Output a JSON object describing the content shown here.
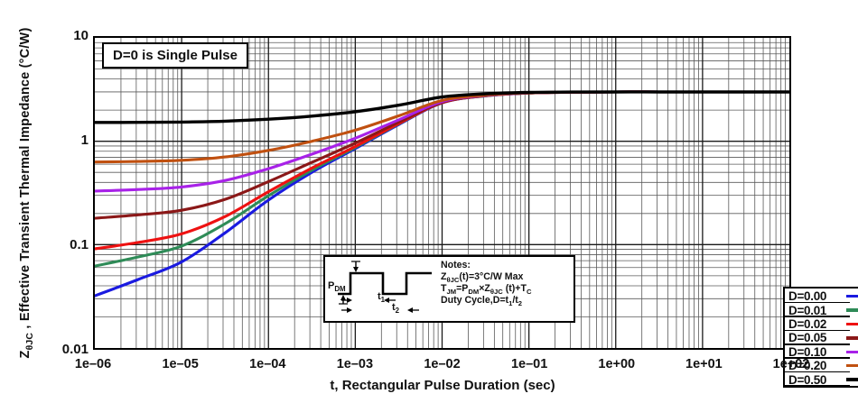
{
  "chart_data": {
    "type": "line",
    "x_scale": "log",
    "y_scale": "log",
    "xlim": [
      1e-06,
      100
    ],
    "ylim": [
      0.01,
      10
    ],
    "grid": true,
    "xlabel": "t, Rectangular Pulse Duration (sec)",
    "ylabel_segments": [
      {
        "t": "Z"
      },
      {
        "sub": "θJC"
      },
      {
        "t": " , Effective Transient Thermal Impedance (°C/W)"
      }
    ],
    "annotation": "D=0 is Single Pulse",
    "x_tick_values": [
      1e-06,
      1e-05,
      0.0001,
      0.001,
      0.01,
      0.1,
      1,
      10,
      100
    ],
    "x_tick_labels": [
      "1e–06",
      "1e–05",
      "1e–04",
      "1e–03",
      "1e–02",
      "1e–01",
      "1e+00",
      "1e+01",
      "1e+02"
    ],
    "y_tick_values": [
      10,
      1,
      0.1,
      0.01
    ],
    "y_tick_labels": [
      "10",
      "1",
      "0.1",
      "0.01"
    ],
    "legend_position": "bottom-right",
    "x": [
      1e-06,
      3.16e-06,
      1e-05,
      3.16e-05,
      0.0001,
      0.000316,
      0.001,
      0.00316,
      0.01,
      0.0316,
      0.1,
      0.316,
      1,
      3.16,
      10,
      31.6,
      100
    ],
    "series": [
      {
        "name": "D=0.00",
        "duty_cycle": 0.0,
        "color": "#1a1ae0",
        "values": [
          0.032,
          0.046,
          0.068,
          0.13,
          0.27,
          0.5,
          0.85,
          1.45,
          2.35,
          2.75,
          2.93,
          2.98,
          3.0,
          3.0,
          3.0,
          3.0,
          3.0
        ]
      },
      {
        "name": "D=0.01",
        "duty_cycle": 0.01,
        "color": "#2e8b57",
        "values": [
          0.062,
          0.076,
          0.097,
          0.159,
          0.297,
          0.525,
          0.87,
          1.47,
          2.36,
          2.75,
          2.93,
          2.98,
          3.0,
          3.0,
          3.0,
          3.0,
          3.0
        ]
      },
      {
        "name": "D=0.02",
        "duty_cycle": 0.02,
        "color": "#ee1111",
        "values": [
          0.091,
          0.105,
          0.127,
          0.187,
          0.325,
          0.55,
          0.89,
          1.48,
          2.36,
          2.76,
          2.93,
          2.98,
          3.0,
          3.0,
          3.0,
          3.0,
          3.0
        ]
      },
      {
        "name": "D=0.05",
        "duty_cycle": 0.05,
        "color": "#8b1818",
        "values": [
          0.18,
          0.194,
          0.215,
          0.274,
          0.407,
          0.625,
          0.96,
          1.53,
          2.38,
          2.76,
          2.93,
          2.98,
          3.0,
          3.0,
          3.0,
          3.0,
          3.0
        ]
      },
      {
        "name": "D=0.10",
        "duty_cycle": 0.1,
        "color": "#a822e8",
        "values": [
          0.33,
          0.341,
          0.361,
          0.417,
          0.543,
          0.75,
          1.07,
          1.61,
          2.42,
          2.78,
          2.94,
          2.99,
          3.0,
          3.0,
          3.0,
          3.0,
          3.0
        ]
      },
      {
        "name": "D=0.20",
        "duty_cycle": 0.2,
        "color": "#c05010",
        "values": [
          0.63,
          0.637,
          0.654,
          0.704,
          0.816,
          1.0,
          1.28,
          1.76,
          2.48,
          2.8,
          2.94,
          2.99,
          3.0,
          3.0,
          3.0,
          3.0,
          3.0
        ]
      },
      {
        "name": "D=0.50",
        "duty_cycle": 0.5,
        "color": "#000000",
        "values": [
          1.52,
          1.523,
          1.534,
          1.565,
          1.635,
          1.75,
          1.93,
          2.23,
          2.68,
          2.88,
          2.97,
          2.99,
          3.0,
          3.0,
          3.0,
          3.0,
          3.0
        ]
      }
    ],
    "max_value_note": "3°C/W"
  },
  "inset": {
    "notes_title": "Notes:",
    "notes_lines": [
      [
        {
          "t": "Z"
        },
        {
          "sub": "θJC"
        },
        {
          "t": "(t)=3°C/W Max"
        }
      ],
      [
        {
          "t": "T"
        },
        {
          "sub": "JM"
        },
        {
          "t": "=P"
        },
        {
          "sub": "DM"
        },
        {
          "t": "×Z"
        },
        {
          "sub": "θJC"
        },
        {
          "t": " (t)+T"
        },
        {
          "sub": "C"
        }
      ],
      [
        {
          "t": "Duty Cycle,D=t"
        },
        {
          "sub": "1"
        },
        {
          "t": "/t"
        },
        {
          "sub": "2"
        }
      ]
    ],
    "waveform_labels": {
      "amplitude": [
        {
          "t": "P"
        },
        {
          "sub": "DM"
        }
      ],
      "t1": [
        {
          "t": "t"
        },
        {
          "sub": "1"
        }
      ],
      "t2": [
        {
          "t": "t"
        },
        {
          "sub": "2"
        }
      ]
    }
  },
  "style_hints": {
    "grid_major_color": "#1a1a1a",
    "grid_minor_color": "#5a5a5a",
    "frame_color": "#000000",
    "background": "#ffffff"
  }
}
